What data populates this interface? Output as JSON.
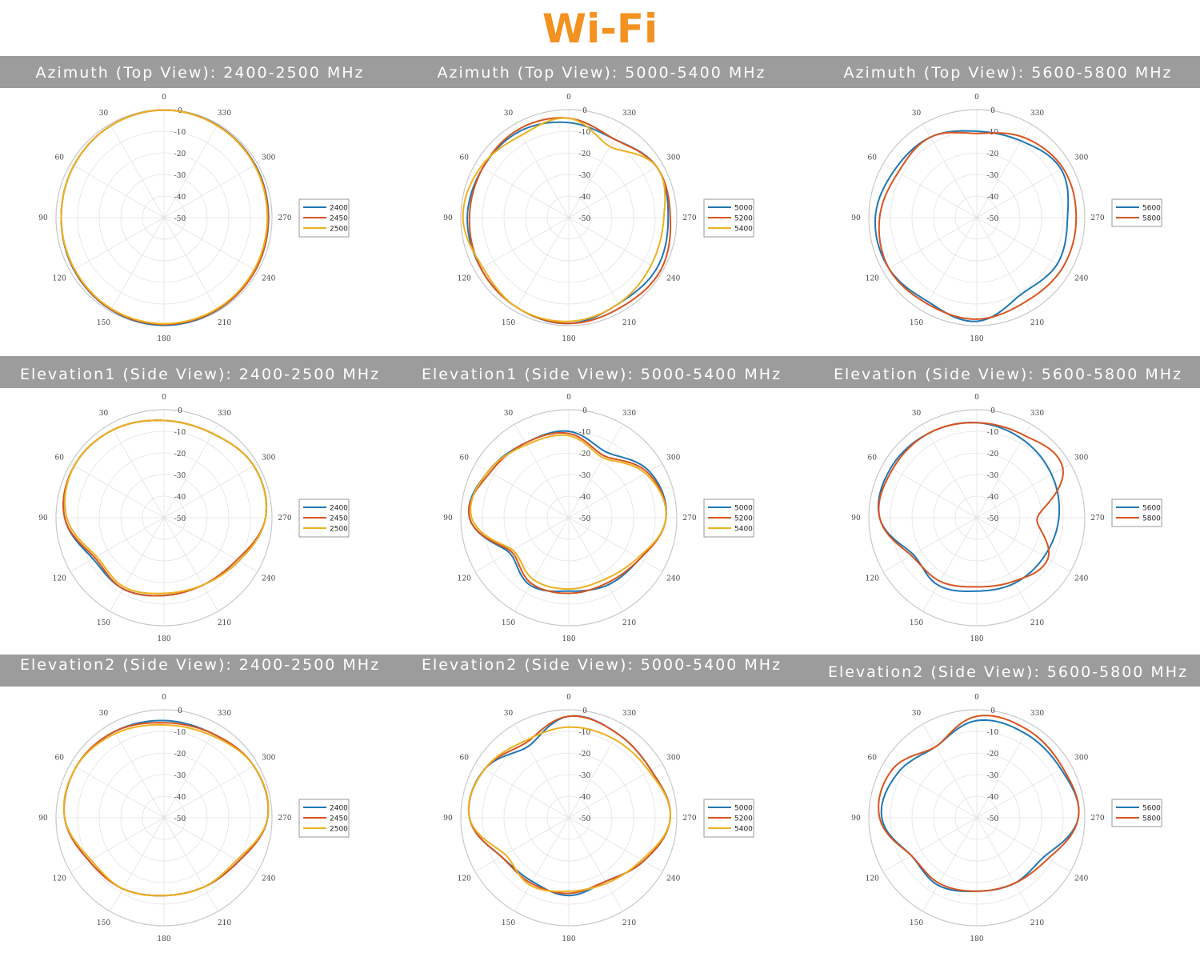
{
  "page_title": "Wi-Fi",
  "colors": {
    "title": "#f39220",
    "band": "#9c9c9c",
    "blue": "#1f77b4",
    "red": "#d9541e",
    "yellow": "#edb120"
  },
  "rows": [
    {
      "headers": [
        "Azimuth (Top View): 2400-2500 MHz",
        "Azimuth (Top View): 5000-5400 MHz",
        "Azimuth (Top View): 5600-5800 MHz"
      ]
    },
    {
      "headers": [
        "Elevation1 (Side View): 2400-2500 MHz",
        "Elevation1 (Side View): 5000-5400 MHz",
        "Elevation (Side View): 5600-5800 MHz"
      ]
    },
    {
      "headers": [
        "Elevation2 (Side View): 2400-2500 MHz",
        "Elevation2 (Side View): 5000-5400 MHz",
        "Elevation2 (Side View): 5600-5800 MHz"
      ]
    }
  ],
  "chart_data": [
    {
      "type": "polar",
      "id": "az-24",
      "angle_ticks": [
        0,
        30,
        60,
        90,
        120,
        150,
        180,
        210,
        240,
        270,
        300,
        330
      ],
      "radial_ticks": [
        0,
        -10,
        -20,
        -30,
        -40,
        -50
      ],
      "rlim": [
        -50,
        0
      ],
      "series": [
        {
          "name": "2400",
          "color": "#1f77b4",
          "angles": [
            0,
            30,
            60,
            90,
            120,
            150,
            180,
            210,
            240,
            270,
            300,
            330
          ],
          "values": [
            -0.2,
            -0.8,
            -1.8,
            -2.4,
            -1.8,
            -0.8,
            -0.2,
            -0.6,
            -1.2,
            -1.6,
            -1.2,
            -0.6
          ]
        },
        {
          "name": "2450",
          "color": "#d9541e",
          "angles": [
            0,
            30,
            60,
            90,
            120,
            150,
            180,
            210,
            240,
            270,
            300,
            330
          ],
          "values": [
            -0.2,
            -0.8,
            -1.8,
            -2.4,
            -2.0,
            -1.0,
            -0.6,
            -0.8,
            -1.2,
            -1.8,
            -1.4,
            -0.7
          ]
        },
        {
          "name": "2500",
          "color": "#edb120",
          "angles": [
            0,
            30,
            60,
            90,
            120,
            150,
            180,
            210,
            240,
            270,
            300,
            330
          ],
          "values": [
            -0.2,
            -0.8,
            -1.8,
            -2.4,
            -2.2,
            -1.3,
            -0.9,
            -1.2,
            -1.8,
            -2.2,
            -1.6,
            -0.8
          ]
        }
      ]
    },
    {
      "type": "polar",
      "id": "az-50",
      "angle_ticks": [
        0,
        30,
        60,
        90,
        120,
        150,
        180,
        210,
        240,
        270,
        300,
        330
      ],
      "radial_ticks": [
        0,
        -10,
        -20,
        -30,
        -40,
        -50
      ],
      "rlim": [
        -50,
        0
      ],
      "series": [
        {
          "name": "5000",
          "color": "#1f77b4",
          "angles": [
            0,
            30,
            60,
            90,
            120,
            150,
            180,
            210,
            240,
            270,
            300,
            330
          ],
          "values": [
            -6,
            -4,
            -4,
            -3,
            -3,
            -2,
            -1,
            -4,
            -3,
            -4,
            -3,
            -8
          ]
        },
        {
          "name": "5200",
          "color": "#d9541e",
          "angles": [
            0,
            30,
            60,
            90,
            120,
            150,
            180,
            210,
            240,
            270,
            300,
            330
          ],
          "values": [
            -4,
            -3,
            -4,
            -4,
            -3,
            -2,
            -1,
            -2,
            -1,
            -3,
            -3,
            -8
          ]
        },
        {
          "name": "5400",
          "color": "#edb120",
          "angles": [
            0,
            30,
            60,
            90,
            120,
            150,
            180,
            210,
            240,
            270,
            300,
            330
          ],
          "values": [
            -4,
            -6,
            -3,
            -1,
            -4,
            -2,
            -2,
            -4,
            -6,
            -6,
            -3,
            -12
          ]
        }
      ]
    },
    {
      "type": "polar",
      "id": "az-56",
      "angle_ticks": [
        0,
        30,
        60,
        90,
        120,
        150,
        180,
        210,
        240,
        270,
        300,
        330
      ],
      "radial_ticks": [
        0,
        -10,
        -20,
        -30,
        -40,
        -50
      ],
      "rlim": [
        -50,
        0
      ],
      "series": [
        {
          "name": "5600",
          "color": "#1f77b4",
          "angles": [
            0,
            30,
            60,
            90,
            120,
            150,
            180,
            210,
            240,
            270,
            300,
            330
          ],
          "values": [
            -10,
            -7,
            -6,
            -3,
            -3,
            -5,
            -2,
            -9,
            -7,
            -8,
            -5,
            -9
          ]
        },
        {
          "name": "5800",
          "color": "#d9541e",
          "angles": [
            0,
            30,
            60,
            90,
            120,
            150,
            180,
            210,
            240,
            270,
            300,
            330
          ],
          "values": [
            -11,
            -7,
            -8,
            -5,
            -3,
            -4,
            -3,
            -5,
            -4,
            -4,
            -4,
            -7
          ]
        }
      ]
    },
    {
      "type": "polar",
      "id": "el1-24",
      "angle_ticks": [
        0,
        30,
        60,
        90,
        120,
        150,
        180,
        210,
        240,
        270,
        300,
        330
      ],
      "radial_ticks": [
        0,
        -10,
        -20,
        -30,
        -40,
        -50
      ],
      "rlim": [
        -50,
        0
      ],
      "series": [
        {
          "name": "2400",
          "color": "#1f77b4",
          "angles": [
            0,
            30,
            60,
            90,
            120,
            150,
            180,
            210,
            240,
            270,
            300,
            330
          ],
          "values": [
            -5,
            -3,
            -2,
            -4,
            -12,
            -12,
            -14,
            -14,
            -10,
            -3,
            -2,
            -5
          ]
        },
        {
          "name": "2450",
          "color": "#d9541e",
          "angles": [
            0,
            30,
            60,
            90,
            120,
            150,
            180,
            210,
            240,
            270,
            300,
            330
          ],
          "values": [
            -5,
            -3,
            -2,
            -4,
            -13,
            -12,
            -14,
            -14,
            -11,
            -3,
            -2,
            -5
          ]
        },
        {
          "name": "2500",
          "color": "#edb120",
          "angles": [
            0,
            30,
            60,
            90,
            120,
            150,
            180,
            210,
            240,
            270,
            300,
            330
          ],
          "values": [
            -5,
            -3,
            -2,
            -5,
            -14,
            -13,
            -15,
            -14,
            -10,
            -3,
            -2,
            -5
          ]
        }
      ]
    },
    {
      "type": "polar",
      "id": "el1-50",
      "angle_ticks": [
        0,
        30,
        60,
        90,
        120,
        150,
        180,
        210,
        240,
        270,
        300,
        330
      ],
      "radial_ticks": [
        0,
        -10,
        -20,
        -30,
        -40,
        -50
      ],
      "rlim": [
        -50,
        0
      ],
      "series": [
        {
          "name": "5000",
          "color": "#1f77b4",
          "angles": [
            0,
            30,
            60,
            90,
            120,
            150,
            180,
            210,
            240,
            270,
            300,
            330
          ],
          "values": [
            -10,
            -10,
            -7,
            -4,
            -18,
            -14,
            -16,
            -14,
            -12,
            -5,
            -7,
            -15
          ]
        },
        {
          "name": "5200",
          "color": "#d9541e",
          "angles": [
            0,
            30,
            60,
            90,
            120,
            150,
            180,
            210,
            240,
            270,
            300,
            330
          ],
          "values": [
            -11,
            -10,
            -8,
            -4,
            -19,
            -15,
            -15,
            -15,
            -12,
            -5,
            -8,
            -17
          ]
        },
        {
          "name": "5400",
          "color": "#edb120",
          "angles": [
            0,
            30,
            60,
            90,
            120,
            150,
            180,
            210,
            240,
            270,
            300,
            330
          ],
          "values": [
            -12,
            -11,
            -7,
            -5,
            -20,
            -17,
            -17,
            -17,
            -13,
            -5,
            -9,
            -18
          ]
        }
      ]
    },
    {
      "type": "polar",
      "id": "el-56",
      "angle_ticks": [
        0,
        30,
        60,
        90,
        120,
        150,
        180,
        210,
        240,
        270,
        300,
        330
      ],
      "radial_ticks": [
        0,
        -10,
        -20,
        -30,
        -40,
        -50
      ],
      "rlim": [
        -50,
        0
      ],
      "series": [
        {
          "name": "5600",
          "color": "#1f77b4",
          "angles": [
            0,
            30,
            60,
            90,
            120,
            150,
            180,
            210,
            240,
            270,
            300,
            330
          ],
          "values": [
            -6,
            -5,
            -4,
            -5,
            -16,
            -14,
            -16,
            -15,
            -14,
            -12,
            -10,
            -8
          ]
        },
        {
          "name": "5800",
          "color": "#d9541e",
          "angles": [
            0,
            30,
            60,
            90,
            120,
            150,
            180,
            210,
            240,
            270,
            300,
            330
          ],
          "values": [
            -6,
            -5,
            -5,
            -5,
            -15,
            -16,
            -18,
            -16,
            -12,
            -22,
            -4,
            -6
          ]
        }
      ]
    },
    {
      "type": "polar",
      "id": "el2-24",
      "angle_ticks": [
        0,
        30,
        60,
        90,
        120,
        150,
        180,
        210,
        240,
        270,
        300,
        330
      ],
      "radial_ticks": [
        0,
        -10,
        -20,
        -30,
        -40,
        -50
      ],
      "rlim": [
        -50,
        0
      ],
      "series": [
        {
          "name": "2400",
          "color": "#1f77b4",
          "angles": [
            0,
            30,
            60,
            90,
            120,
            150,
            180,
            210,
            240,
            270,
            300,
            330
          ],
          "values": [
            -5,
            -4,
            -3,
            -4,
            -10,
            -12,
            -14,
            -13,
            -10,
            -2,
            -2,
            -5
          ]
        },
        {
          "name": "2450",
          "color": "#d9541e",
          "angles": [
            0,
            30,
            60,
            90,
            120,
            150,
            180,
            210,
            240,
            270,
            300,
            330
          ],
          "values": [
            -6,
            -4,
            -3,
            -4,
            -10,
            -12,
            -14,
            -13,
            -10,
            -2,
            -2,
            -5
          ]
        },
        {
          "name": "2500",
          "color": "#edb120",
          "angles": [
            0,
            30,
            60,
            90,
            120,
            150,
            180,
            210,
            240,
            270,
            300,
            330
          ],
          "values": [
            -7,
            -5,
            -3,
            -4,
            -11,
            -12,
            -14,
            -13,
            -11,
            -2,
            -2,
            -6
          ]
        }
      ]
    },
    {
      "type": "polar",
      "id": "el2-50",
      "angle_ticks": [
        0,
        30,
        60,
        90,
        120,
        150,
        180,
        210,
        240,
        270,
        300,
        330
      ],
      "radial_ticks": [
        0,
        -10,
        -20,
        -30,
        -40,
        -50
      ],
      "rlim": [
        -50,
        0
      ],
      "series": [
        {
          "name": "5000",
          "color": "#1f77b4",
          "angles": [
            0,
            30,
            60,
            90,
            120,
            150,
            180,
            210,
            240,
            270,
            300,
            330
          ],
          "values": [
            -3,
            -12,
            -5,
            -4,
            -14,
            -16,
            -14,
            -16,
            -10,
            -3,
            -6,
            -5
          ]
        },
        {
          "name": "5200",
          "color": "#d9541e",
          "angles": [
            0,
            30,
            60,
            90,
            120,
            150,
            180,
            210,
            240,
            270,
            300,
            330
          ],
          "values": [
            -3,
            -10,
            -5,
            -4,
            -14,
            -15,
            -15,
            -16,
            -10,
            -3,
            -6,
            -5
          ]
        },
        {
          "name": "5400",
          "color": "#edb120",
          "angles": [
            0,
            30,
            60,
            90,
            120,
            150,
            180,
            210,
            240,
            270,
            300,
            330
          ],
          "values": [
            -8,
            -9,
            -5,
            -4,
            -16,
            -14,
            -16,
            -15,
            -11,
            -3,
            -7,
            -8
          ]
        }
      ]
    },
    {
      "type": "polar",
      "id": "el2-56",
      "angle_ticks": [
        0,
        30,
        60,
        90,
        120,
        150,
        180,
        210,
        240,
        270,
        300,
        330
      ],
      "radial_ticks": [
        0,
        -10,
        -20,
        -30,
        -40,
        -50
      ],
      "rlim": [
        -50,
        0
      ],
      "series": [
        {
          "name": "5600",
          "color": "#1f77b4",
          "angles": [
            0,
            30,
            60,
            90,
            120,
            150,
            180,
            210,
            240,
            270,
            300,
            330
          ],
          "values": [
            -5,
            -12,
            -8,
            -6,
            -15,
            -14,
            -16,
            -15,
            -14,
            -3,
            -5,
            -5
          ]
        },
        {
          "name": "5800",
          "color": "#d9541e",
          "angles": [
            0,
            30,
            60,
            90,
            120,
            150,
            180,
            210,
            240,
            270,
            300,
            330
          ],
          "values": [
            -3,
            -12,
            -5,
            -5,
            -15,
            -15,
            -16,
            -15,
            -12,
            -3,
            -4,
            -3
          ]
        }
      ]
    }
  ]
}
